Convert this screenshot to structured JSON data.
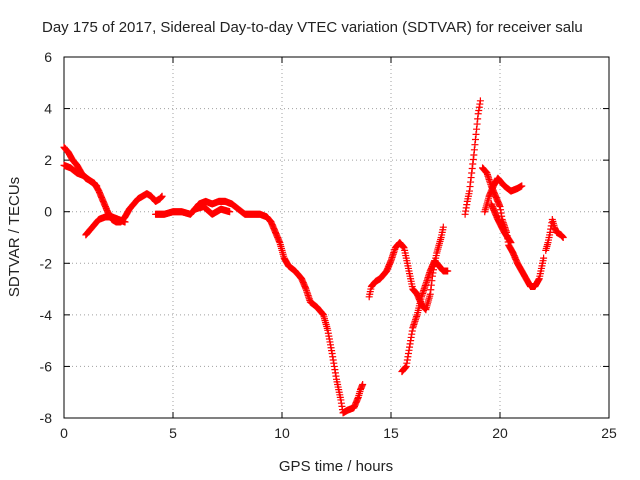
{
  "chart_data": {
    "type": "scatter",
    "title": "Day 175 of 2017, Sidereal Day-to-day VTEC variation (SDTVAR) for receiver salu",
    "xlabel": "GPS time / hours",
    "ylabel": "SDTVAR / TECUs",
    "xlim": [
      0,
      25
    ],
    "ylim": [
      -8,
      6
    ],
    "xticks": [
      "0",
      "5",
      "10",
      "15",
      "20",
      "25"
    ],
    "yticks": [
      "-8",
      "-6",
      "-4",
      "-2",
      "0",
      "2",
      "4",
      "6"
    ],
    "grid": true,
    "marker": "plus",
    "color": "#ff0000",
    "series": [
      {
        "segments": [
          [
            [
              0.0,
              2.5
            ],
            [
              0.2,
              2.3
            ],
            [
              0.4,
              2.0
            ],
            [
              0.6,
              1.8
            ],
            [
              0.8,
              1.5
            ],
            [
              1.0,
              1.3
            ],
            [
              1.2,
              1.2
            ],
            [
              1.4,
              1.1
            ],
            [
              1.6,
              0.8
            ],
            [
              1.8,
              0.4
            ],
            [
              2.0,
              0.0
            ],
            [
              2.2,
              -0.3
            ],
            [
              2.4,
              -0.4
            ],
            [
              2.6,
              -0.4
            ],
            [
              2.8,
              -0.2
            ],
            [
              3.0,
              0.1
            ],
            [
              3.2,
              0.3
            ],
            [
              3.4,
              0.5
            ],
            [
              3.6,
              0.6
            ],
            [
              3.8,
              0.7
            ],
            [
              4.0,
              0.6
            ],
            [
              4.2,
              0.4
            ],
            [
              4.4,
              0.5
            ],
            [
              4.5,
              0.6
            ]
          ],
          [
            [
              0.0,
              1.8
            ],
            [
              0.3,
              1.7
            ],
            [
              0.6,
              1.5
            ],
            [
              0.9,
              1.4
            ],
            [
              1.2,
              1.2
            ],
            [
              1.5,
              1.0
            ]
          ],
          [
            [
              1.0,
              -0.9
            ],
            [
              1.3,
              -0.6
            ],
            [
              1.6,
              -0.3
            ],
            [
              1.9,
              -0.2
            ],
            [
              2.2,
              -0.2
            ],
            [
              2.5,
              -0.3
            ],
            [
              2.8,
              -0.4
            ]
          ],
          [
            [
              4.2,
              -0.1
            ],
            [
              4.6,
              -0.1
            ],
            [
              5.0,
              0.0
            ],
            [
              5.4,
              0.0
            ],
            [
              5.8,
              -0.1
            ],
            [
              6.0,
              0.1
            ],
            [
              6.2,
              0.3
            ],
            [
              6.5,
              0.4
            ],
            [
              6.8,
              0.3
            ],
            [
              7.1,
              0.4
            ],
            [
              7.4,
              0.4
            ],
            [
              7.7,
              0.3
            ],
            [
              8.0,
              0.1
            ],
            [
              8.3,
              -0.1
            ],
            [
              8.6,
              -0.1
            ],
            [
              9.0,
              -0.1
            ],
            [
              9.3,
              -0.2
            ],
            [
              9.5,
              -0.4
            ],
            [
              9.7,
              -0.8
            ],
            [
              9.9,
              -1.2
            ],
            [
              10.0,
              -1.5
            ],
            [
              10.1,
              -1.8
            ],
            [
              10.3,
              -2.1
            ],
            [
              10.6,
              -2.3
            ],
            [
              10.9,
              -2.6
            ],
            [
              11.1,
              -3.0
            ],
            [
              11.3,
              -3.5
            ],
            [
              11.6,
              -3.7
            ],
            [
              11.9,
              -4.0
            ],
            [
              12.1,
              -4.6
            ],
            [
              12.3,
              -5.5
            ],
            [
              12.5,
              -6.5
            ],
            [
              12.7,
              -7.3
            ],
            [
              12.8,
              -7.8
            ],
            [
              13.0,
              -7.7
            ],
            [
              13.3,
              -7.6
            ],
            [
              13.5,
              -7.2
            ],
            [
              13.6,
              -6.9
            ],
            [
              13.7,
              -6.7
            ]
          ],
          [
            [
              6.0,
              0.1
            ],
            [
              6.4,
              0.2
            ],
            [
              6.8,
              -0.1
            ],
            [
              7.2,
              0.1
            ],
            [
              7.6,
              0.0
            ]
          ],
          [
            [
              14.0,
              -3.3
            ],
            [
              14.1,
              -2.9
            ],
            [
              14.3,
              -2.7
            ],
            [
              14.5,
              -2.6
            ],
            [
              14.8,
              -2.3
            ],
            [
              15.0,
              -1.9
            ],
            [
              15.2,
              -1.4
            ],
            [
              15.4,
              -1.2
            ],
            [
              15.6,
              -1.4
            ],
            [
              15.8,
              -2.2
            ],
            [
              16.0,
              -3.0
            ],
            [
              16.2,
              -3.2
            ],
            [
              16.4,
              -3.6
            ],
            [
              16.6,
              -3.8
            ],
            [
              16.8,
              -3.2
            ],
            [
              16.9,
              -2.5
            ],
            [
              17.0,
              -2.0
            ],
            [
              17.1,
              -1.6
            ],
            [
              17.3,
              -1.0
            ],
            [
              17.4,
              -0.6
            ]
          ],
          [
            [
              15.5,
              -6.2
            ],
            [
              15.7,
              -6.0
            ],
            [
              15.8,
              -5.5
            ],
            [
              15.9,
              -5.0
            ],
            [
              16.0,
              -4.5
            ],
            [
              16.2,
              -4.0
            ],
            [
              16.4,
              -3.3
            ],
            [
              16.6,
              -2.8
            ],
            [
              16.8,
              -2.3
            ],
            [
              17.0,
              -1.9
            ],
            [
              17.2,
              -2.1
            ],
            [
              17.4,
              -2.3
            ],
            [
              17.6,
              -2.3
            ]
          ],
          [
            [
              18.4,
              -0.1
            ],
            [
              18.5,
              0.4
            ],
            [
              18.6,
              0.8
            ],
            [
              18.7,
              1.5
            ],
            [
              18.8,
              2.2
            ],
            [
              18.9,
              3.0
            ],
            [
              19.0,
              3.8
            ],
            [
              19.1,
              4.3
            ]
          ],
          [
            [
              19.2,
              1.7
            ],
            [
              19.4,
              1.5
            ],
            [
              19.6,
              1.0
            ],
            [
              19.8,
              0.6
            ],
            [
              20.0,
              0.2
            ],
            [
              20.1,
              -0.3
            ],
            [
              20.3,
              -0.8
            ],
            [
              20.4,
              -1.3
            ],
            [
              20.6,
              -1.6
            ],
            [
              20.8,
              -2.0
            ],
            [
              21.0,
              -2.3
            ],
            [
              21.2,
              -2.6
            ],
            [
              21.4,
              -2.9
            ],
            [
              21.6,
              -2.9
            ],
            [
              21.8,
              -2.6
            ],
            [
              22.0,
              -1.8
            ]
          ],
          [
            [
              19.3,
              0.0
            ],
            [
              19.5,
              0.6
            ],
            [
              19.7,
              1.0
            ],
            [
              19.9,
              1.3
            ],
            [
              20.2,
              1.0
            ],
            [
              20.5,
              0.8
            ],
            [
              20.8,
              0.9
            ],
            [
              21.0,
              1.0
            ]
          ],
          [
            [
              19.6,
              0.3
            ],
            [
              19.9,
              -0.3
            ],
            [
              20.2,
              -0.8
            ],
            [
              20.5,
              -1.2
            ]
          ],
          [
            [
              22.1,
              -1.5
            ],
            [
              22.2,
              -1.2
            ],
            [
              22.3,
              -0.8
            ],
            [
              22.4,
              -0.3
            ],
            [
              22.5,
              -0.6
            ],
            [
              22.6,
              -0.8
            ],
            [
              22.8,
              -0.9
            ],
            [
              22.9,
              -1.0
            ]
          ]
        ]
      }
    ]
  }
}
